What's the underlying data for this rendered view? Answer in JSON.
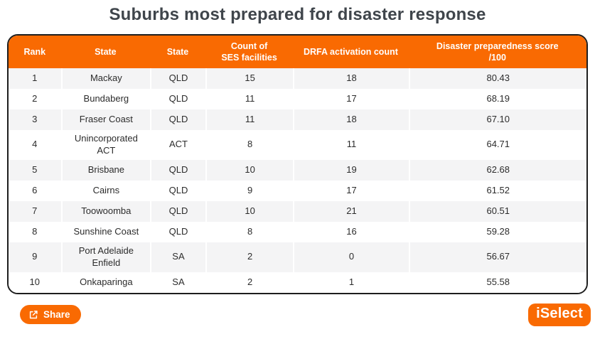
{
  "title": "Suburbs most prepared for disaster response",
  "colors": {
    "accent_orange": "#f96a02",
    "stripe_gray": "#f4f4f5",
    "table_border": "#1e1e1e",
    "title_text": "#3f454b",
    "cell_text": "#2c2c2c",
    "header_text": "#ffffff"
  },
  "chart_data": {
    "type": "table",
    "title": "Suburbs most prepared for disaster response",
    "columns": [
      "Rank",
      "State",
      "State",
      "Count of\nSES facilities",
      "DRFA activation count",
      "Disaster preparedness score\n/100"
    ],
    "rows": [
      [
        "1",
        "Mackay",
        "QLD",
        "15",
        "18",
        "80.43"
      ],
      [
        "2",
        "Bundaberg",
        "QLD",
        "11",
        "17",
        "68.19"
      ],
      [
        "3",
        "Fraser Coast",
        "QLD",
        "11",
        "18",
        "67.10"
      ],
      [
        "4",
        "Unincorporated ACT",
        "ACT",
        "8",
        "11",
        "64.71"
      ],
      [
        "5",
        "Brisbane",
        "QLD",
        "10",
        "19",
        "62.68"
      ],
      [
        "6",
        "Cairns",
        "QLD",
        "9",
        "17",
        "61.52"
      ],
      [
        "7",
        "Toowoomba",
        "QLD",
        "10",
        "21",
        "60.51"
      ],
      [
        "8",
        "Sunshine Coast",
        "QLD",
        "8",
        "16",
        "59.28"
      ],
      [
        "9",
        "Port Adelaide Enfield",
        "SA",
        "2",
        "0",
        "56.67"
      ],
      [
        "10",
        "Onkaparinga",
        "SA",
        "2",
        "1",
        "55.58"
      ]
    ]
  },
  "footer": {
    "share_label": "Share",
    "logo_text": "iSelect"
  }
}
